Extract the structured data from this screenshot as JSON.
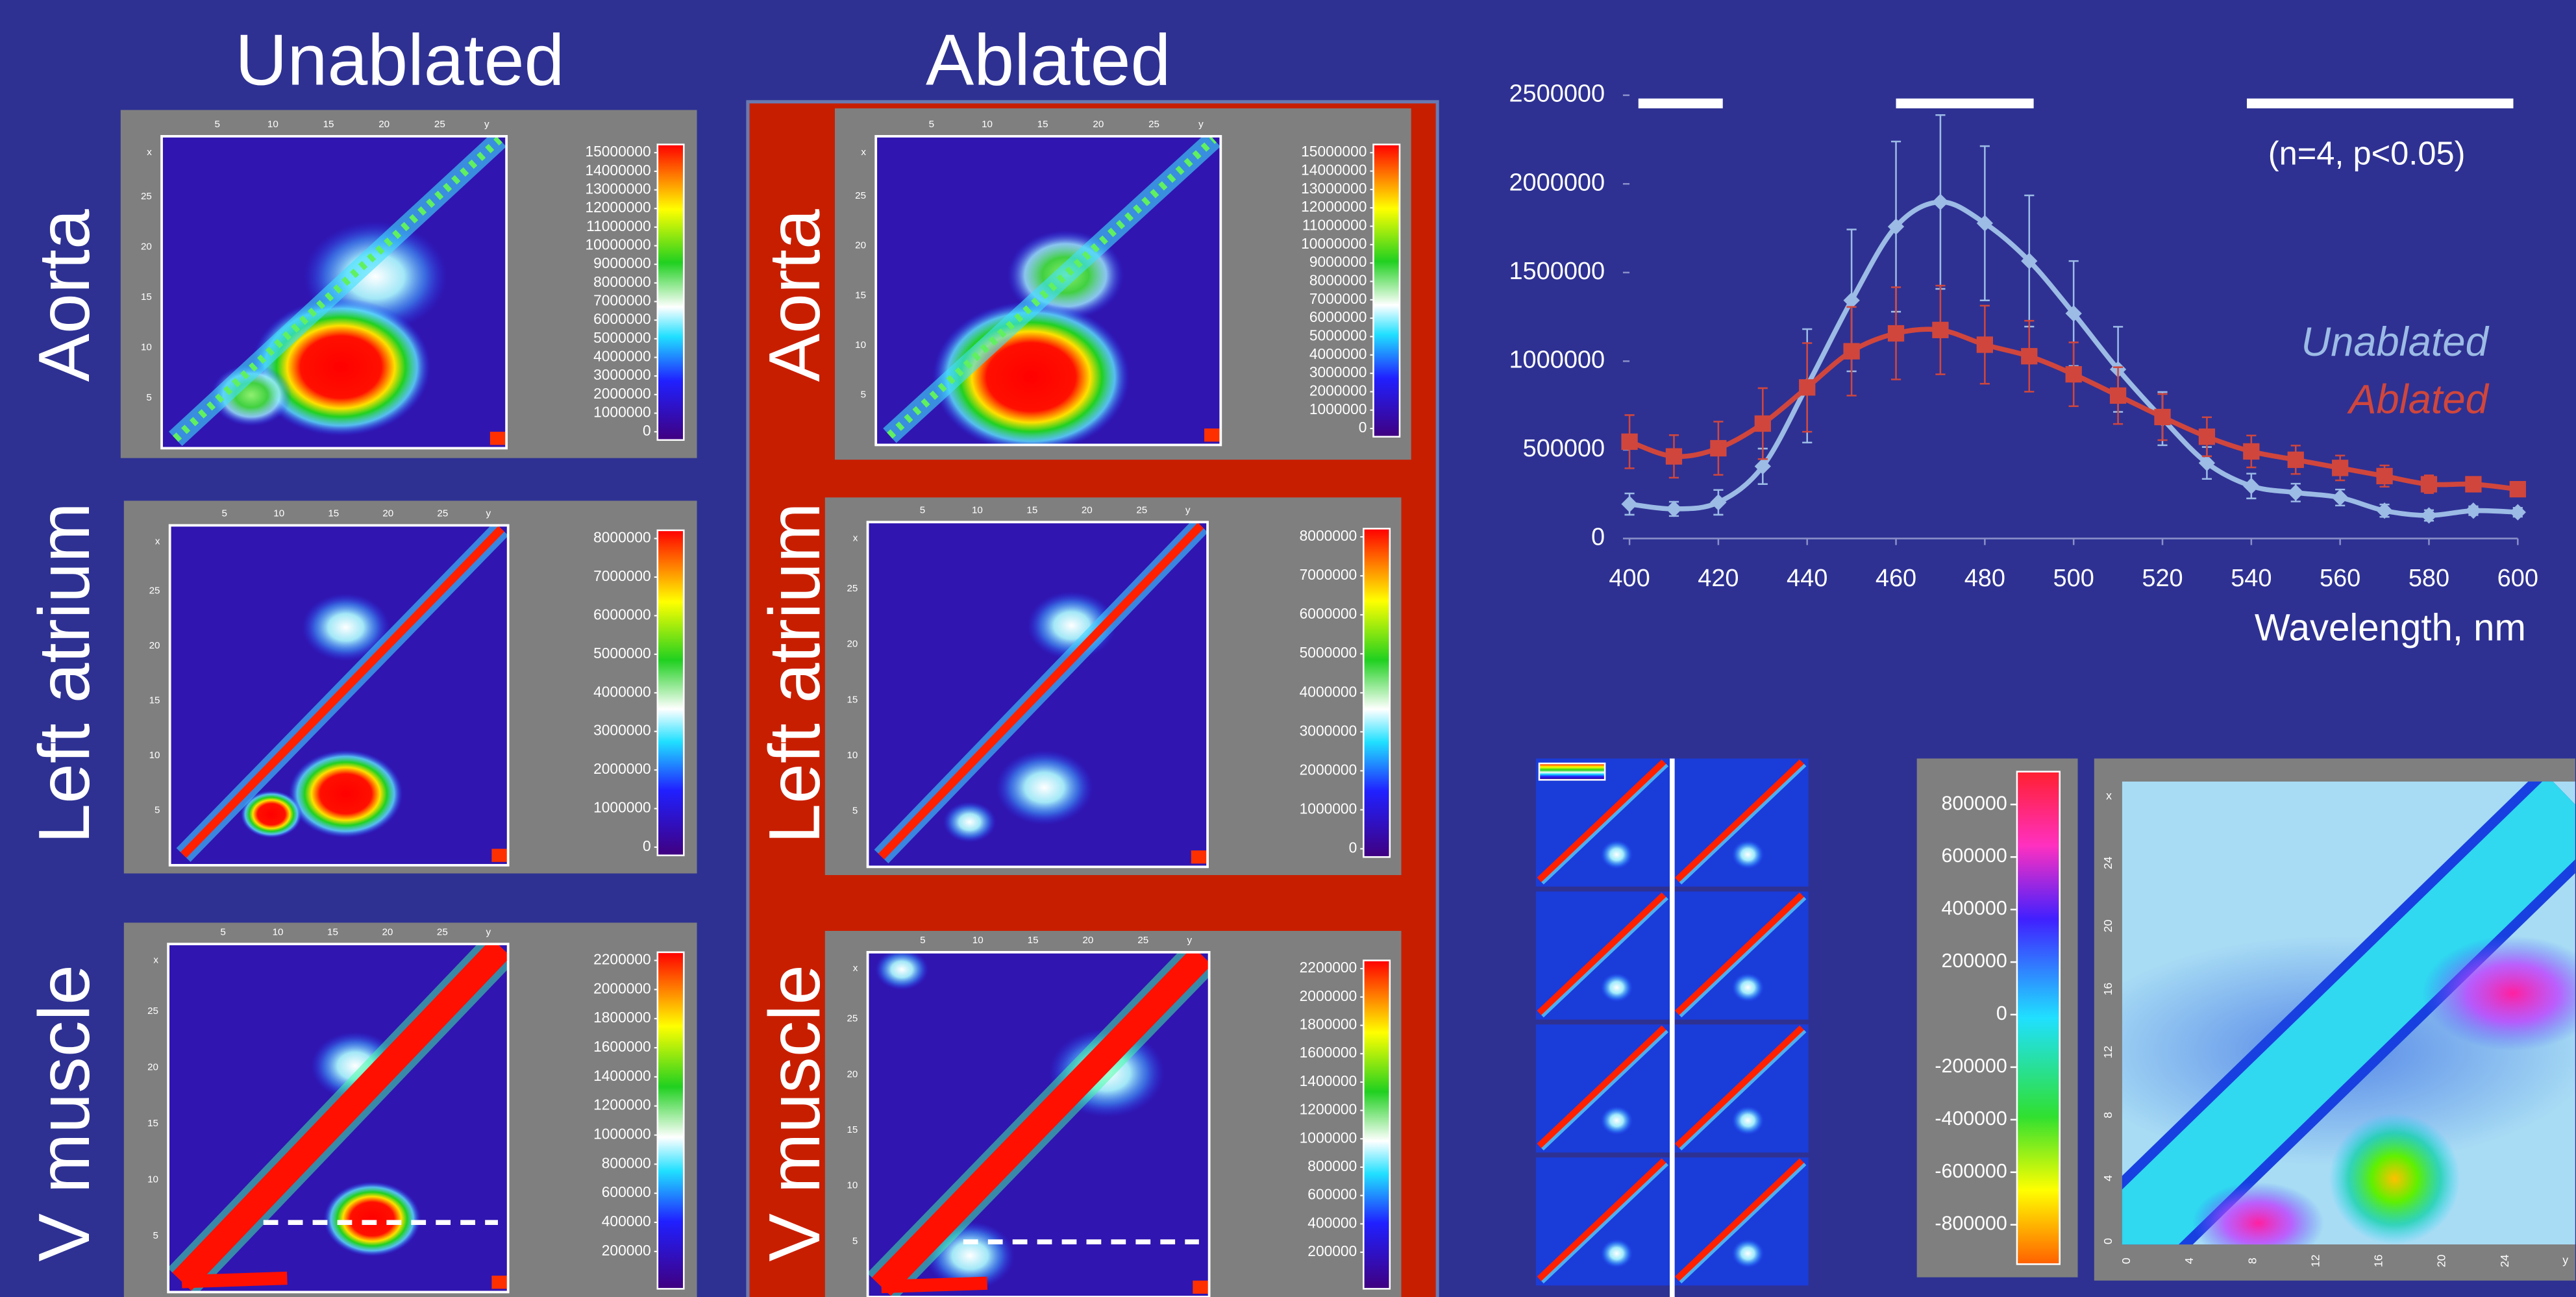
{
  "columns": [
    "Unablated",
    "Ablated"
  ],
  "rows": [
    "Aorta",
    "Left atrium",
    "V muscle"
  ],
  "panel_axis": {
    "ticks": [
      5,
      10,
      15,
      20,
      25
    ],
    "x": "x",
    "y": "y"
  },
  "panels": [
    {
      "colorbar_ticks": [
        0,
        1000000,
        2000000,
        3000000,
        4000000,
        5000000,
        6000000,
        7000000,
        8000000,
        9000000,
        10000000,
        11000000,
        12000000,
        13000000,
        14000000,
        15000000
      ]
    },
    {
      "colorbar_ticks": [
        0,
        1000000,
        2000000,
        3000000,
        4000000,
        5000000,
        6000000,
        7000000,
        8000000
      ]
    },
    {
      "colorbar_ticks": [
        200000,
        400000,
        600000,
        800000,
        1000000,
        1200000,
        1400000,
        1600000,
        1800000,
        2000000,
        2200000
      ]
    },
    {
      "colorbar_ticks": [
        0,
        1000000,
        2000000,
        3000000,
        4000000,
        5000000,
        6000000,
        7000000,
        8000000,
        9000000,
        10000000,
        11000000,
        12000000,
        13000000,
        14000000,
        15000000
      ]
    },
    {
      "colorbar_ticks": [
        0,
        1000000,
        2000000,
        3000000,
        4000000,
        5000000,
        6000000,
        7000000,
        8000000
      ]
    },
    {
      "colorbar_ticks": [
        200000,
        400000,
        600000,
        800000,
        1000000,
        1200000,
        1400000,
        1600000,
        1800000,
        2000000,
        2200000
      ]
    }
  ],
  "diff_map": {
    "colorbar_ticks": [
      800000,
      600000,
      400000,
      200000,
      0,
      -200000,
      -400000,
      -600000,
      -800000
    ],
    "axis_ticks": [
      0,
      4,
      8,
      12,
      16,
      20,
      24
    ],
    "x": "x",
    "y": "y"
  },
  "chart_data": {
    "type": "line",
    "x_label": "Wavelength, nm",
    "annotation": "(n=4, p<0.05)",
    "x": [
      400,
      410,
      420,
      430,
      440,
      450,
      460,
      470,
      480,
      490,
      500,
      510,
      520,
      530,
      540,
      550,
      560,
      570,
      580,
      590,
      600
    ],
    "xlim": [
      400,
      600
    ],
    "xticks": [
      400,
      420,
      440,
      460,
      480,
      500,
      520,
      540,
      560,
      580,
      600
    ],
    "ylim": [
      0,
      2500000
    ],
    "yticks": [
      0,
      500000,
      1000000,
      1500000,
      2000000,
      2500000
    ],
    "significance_bars": [
      [
        402,
        421
      ],
      [
        460,
        491
      ],
      [
        539,
        599
      ]
    ],
    "series": [
      {
        "name": "Unablated",
        "color": "#9cbbe5",
        "values": [
          194000,
          167000,
          204000,
          407000,
          861000,
          1343000,
          1759000,
          1898000,
          1778000,
          1565000,
          1269000,
          954000,
          676000,
          426000,
          296000,
          259000,
          231000,
          157000,
          130000,
          157000,
          148000
        ],
        "errors": [
          60000,
          40000,
          70000,
          100000,
          320000,
          400000,
          480000,
          490000,
          435000,
          370000,
          296000,
          240000,
          150000,
          90000,
          70000,
          50000,
          45000,
          35000,
          30000,
          25000,
          25000
        ]
      },
      {
        "name": "Ablated",
        "color": "#d0463c",
        "values": [
          546000,
          463000,
          509000,
          648000,
          852000,
          1056000,
          1157000,
          1176000,
          1093000,
          1028000,
          926000,
          806000,
          685000,
          574000,
          491000,
          444000,
          398000,
          352000,
          306000,
          306000,
          278000
        ],
        "errors": [
          150000,
          120000,
          150000,
          200000,
          250000,
          250000,
          260000,
          250000,
          220000,
          200000,
          180000,
          160000,
          130000,
          110000,
          90000,
          80000,
          70000,
          60000,
          50000,
          40000,
          40000
        ]
      }
    ]
  }
}
